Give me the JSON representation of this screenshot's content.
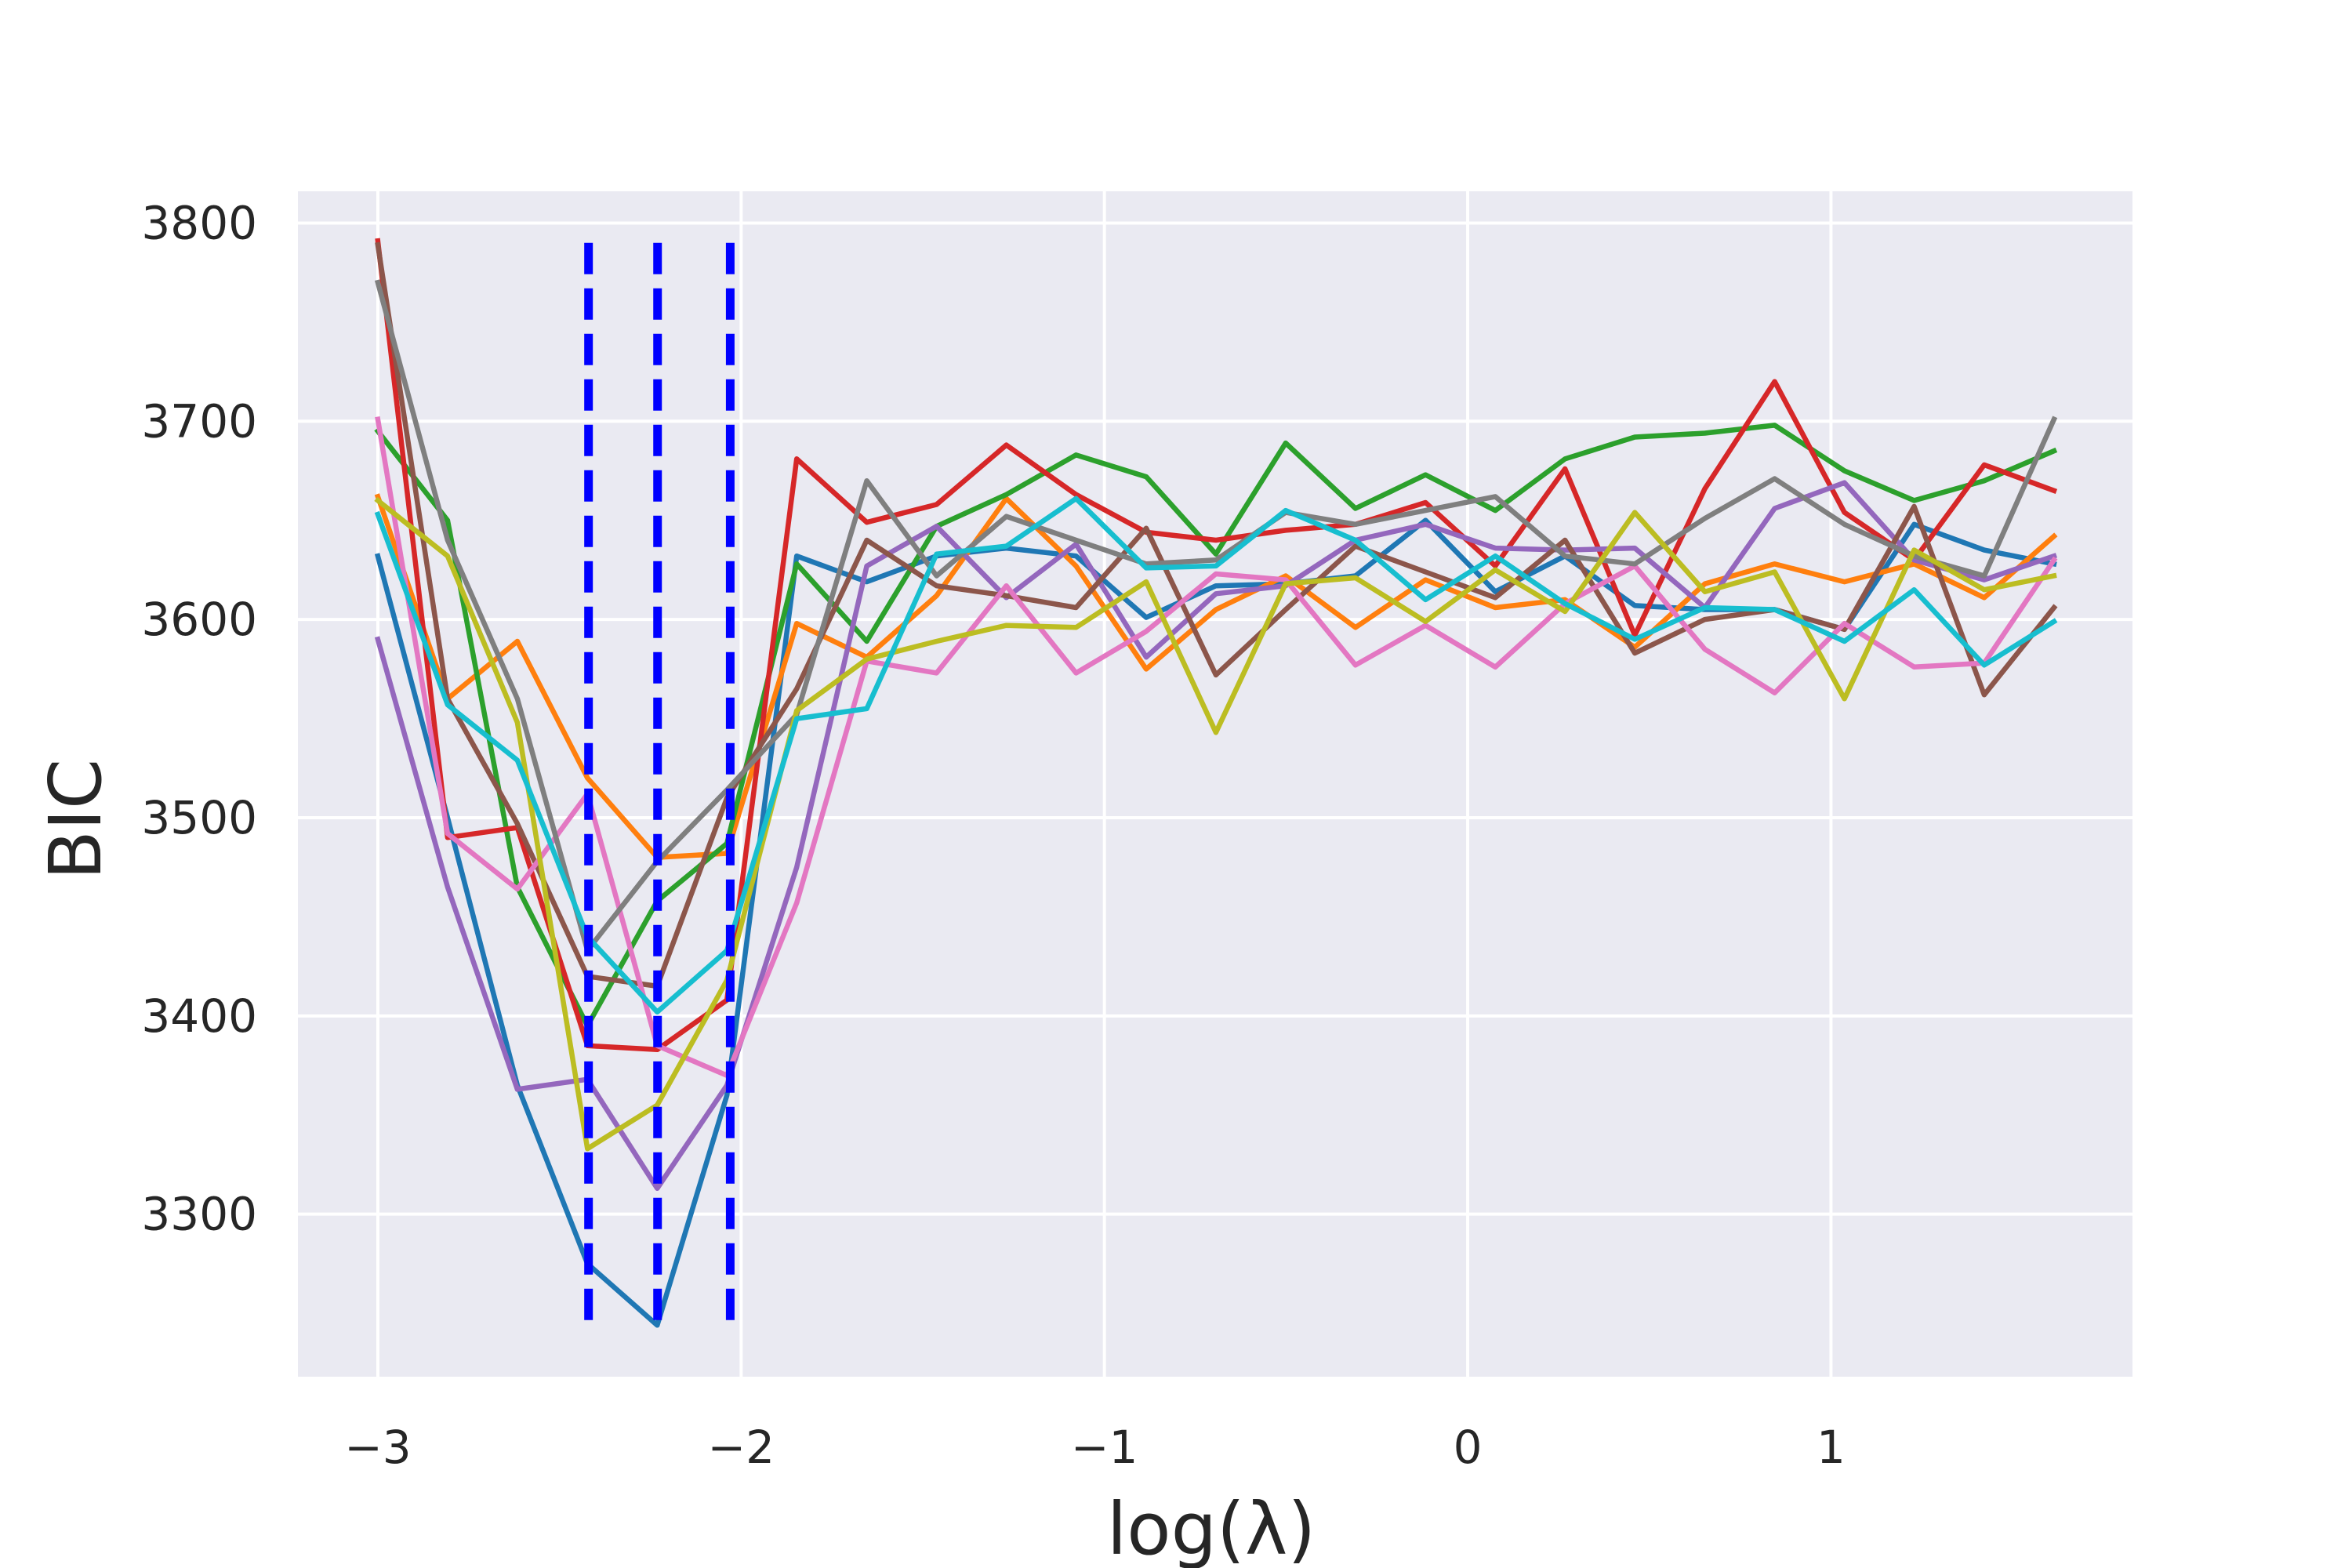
{
  "chart_data": {
    "type": "line",
    "title": "",
    "xlabel": "log(λ)",
    "ylabel": "BIC",
    "xlim": [
      -3.22,
      1.83
    ],
    "ylim": [
      3218,
      3816
    ],
    "xticks": [
      -3,
      -2,
      -1,
      0,
      1
    ],
    "xtick_labels": [
      "−3",
      "−2",
      "−1",
      "0",
      "1"
    ],
    "yticks": [
      3300,
      3400,
      3500,
      3600,
      3700,
      3800
    ],
    "ytick_labels": [
      "3300",
      "3400",
      "3500",
      "3600",
      "3700",
      "3800"
    ],
    "grid": true,
    "legend": "none",
    "colors": {
      "background": "#eaeaf2",
      "grid": "#ffffff",
      "vline": "#0000ff"
    },
    "vlines": {
      "x": [
        -2.42,
        -2.23,
        -2.03
      ],
      "y_range": [
        3244,
        3790
      ],
      "style": "dashed"
    },
    "x": [
      -3.0,
      -2.808,
      -2.616,
      -2.423,
      -2.231,
      -2.039,
      -1.847,
      -1.654,
      -1.462,
      -1.27,
      -1.078,
      -0.885,
      -0.693,
      -0.501,
      -0.309,
      -0.116,
      0.076,
      0.268,
      0.46,
      0.653,
      0.845,
      1.037,
      1.229,
      1.422,
      1.614
    ],
    "series": [
      {
        "color": "#1f77b4",
        "values": [
          3632,
          3500,
          3365,
          3275,
          3244,
          3360,
          3632,
          3619,
          3632,
          3636,
          3632,
          3601,
          3617,
          3618,
          3622,
          3650,
          3614,
          3632,
          3607,
          3605,
          3605,
          3595,
          3648,
          3635,
          3628
        ]
      },
      {
        "color": "#ff7f0e",
        "values": [
          3662,
          3560,
          3589,
          3520,
          3480,
          3482,
          3598,
          3581,
          3612,
          3661,
          3627,
          3575,
          3605,
          3622,
          3596,
          3620,
          3606,
          3610,
          3586,
          3618,
          3628,
          3619,
          3628,
          3611,
          3642
        ]
      },
      {
        "color": "#2ca02c",
        "values": [
          3695,
          3650,
          3465,
          3395,
          3458,
          3487,
          3628,
          3589,
          3647,
          3663,
          3683,
          3672,
          3633,
          3689,
          3656,
          3673,
          3655,
          3681,
          3692,
          3694,
          3698,
          3675,
          3660,
          3670,
          3685
        ]
      },
      {
        "color": "#d62728",
        "values": [
          3791,
          3490,
          3495,
          3385,
          3383,
          3408,
          3681,
          3649,
          3658,
          3688,
          3663,
          3644,
          3640,
          3645,
          3648,
          3659,
          3627,
          3676,
          3592,
          3666,
          3720,
          3654,
          3630,
          3678,
          3665
        ]
      },
      {
        "color": "#9467bd",
        "values": [
          3590,
          3465,
          3363,
          3368,
          3313,
          3365,
          3475,
          3627,
          3647,
          3611,
          3638,
          3581,
          3613,
          3617,
          3640,
          3648,
          3636,
          3635,
          3636,
          3606,
          3656,
          3669,
          3630,
          3620,
          3632
        ]
      },
      {
        "color": "#8c564b",
        "values": [
          3789,
          3560,
          3497,
          3420,
          3415,
          3510,
          3565,
          3640,
          3617,
          3612,
          3606,
          3646,
          3572,
          3605,
          3637,
          3624,
          3611,
          3640,
          3583,
          3600,
          3605,
          3595,
          3657,
          3562,
          3606
        ]
      },
      {
        "color": "#e377c2",
        "values": [
          3701,
          3492,
          3464,
          3512,
          3385,
          3370,
          3457,
          3579,
          3573,
          3617,
          3573,
          3594,
          3623,
          3620,
          3577,
          3597,
          3576,
          3608,
          3627,
          3585,
          3563,
          3598,
          3576,
          3578,
          3630
        ]
      },
      {
        "color": "#7f7f7f",
        "values": [
          3770,
          3640,
          3560,
          3433,
          3478,
          3514,
          3552,
          3670,
          3622,
          3652,
          3640,
          3628,
          3630,
          3654,
          3648,
          3655,
          3662,
          3632,
          3628,
          3651,
          3671,
          3648,
          3632,
          3622,
          3701
        ]
      },
      {
        "color": "#bcbd22",
        "values": [
          3660,
          3632,
          3548,
          3333,
          3355,
          3418,
          3554,
          3580,
          3589,
          3597,
          3596,
          3619,
          3543,
          3618,
          3621,
          3599,
          3625,
          3604,
          3654,
          3614,
          3624,
          3560,
          3635,
          3615,
          3622
        ]
      },
      {
        "color": "#17becf",
        "values": [
          3653,
          3557,
          3529,
          3440,
          3402,
          3433,
          3550,
          3555,
          3633,
          3637,
          3661,
          3626,
          3627,
          3655,
          3640,
          3610,
          3632,
          3608,
          3590,
          3606,
          3605,
          3589,
          3615,
          3577,
          3599
        ]
      }
    ]
  }
}
